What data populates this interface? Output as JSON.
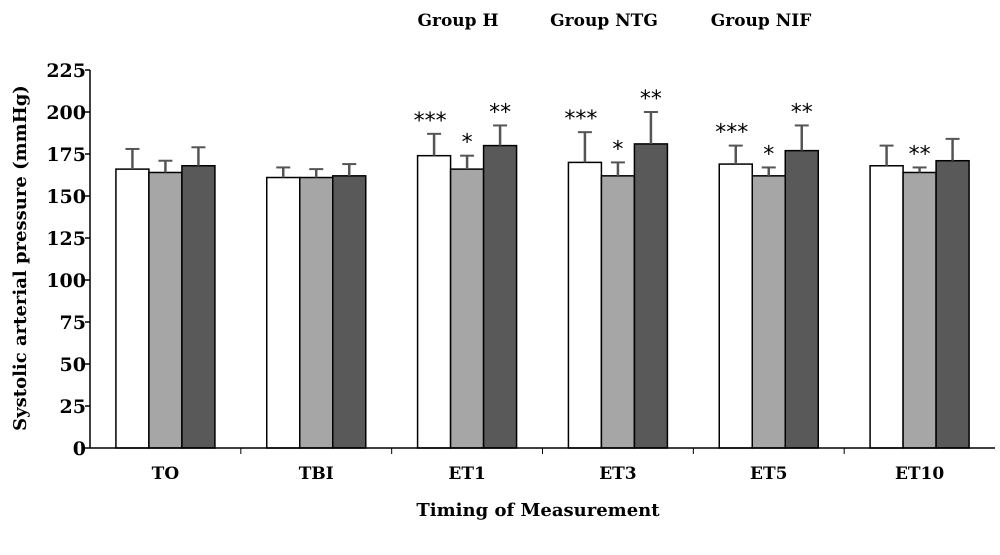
{
  "chart_data": {
    "type": "bar",
    "xlabel": "Timing of Measurement",
    "ylabel": "Systolic arterial pressure (mmHg)",
    "ylim": [
      0,
      225
    ],
    "yticks": [
      0,
      25,
      50,
      75,
      100,
      125,
      150,
      175,
      200,
      225
    ],
    "grid": false,
    "legend_position": "top",
    "categories": [
      "TO",
      "TBI",
      "ET1",
      "ET3",
      "ET5",
      "ET10"
    ],
    "series": [
      {
        "name": "Group H",
        "color": "#ffffff",
        "values": [
          166,
          161,
          174,
          170,
          169,
          168
        ],
        "errors": [
          12,
          6,
          13,
          18,
          11,
          12
        ],
        "significance": [
          "",
          "",
          "***",
          "***",
          "***",
          ""
        ]
      },
      {
        "name": "Group NTG",
        "color": "#a6a6a6",
        "values": [
          164,
          161,
          166,
          162,
          162,
          164
        ],
        "errors": [
          7,
          5,
          8,
          8,
          5,
          3
        ],
        "significance": [
          "",
          "",
          "*",
          "*",
          "*",
          "**"
        ]
      },
      {
        "name": "Group NIF",
        "color": "#595959",
        "values": [
          168,
          162,
          180,
          181,
          177,
          171
        ],
        "errors": [
          11,
          7,
          12,
          19,
          15,
          13
        ],
        "significance": [
          "",
          "",
          "**",
          "**",
          "**",
          ""
        ]
      }
    ]
  }
}
